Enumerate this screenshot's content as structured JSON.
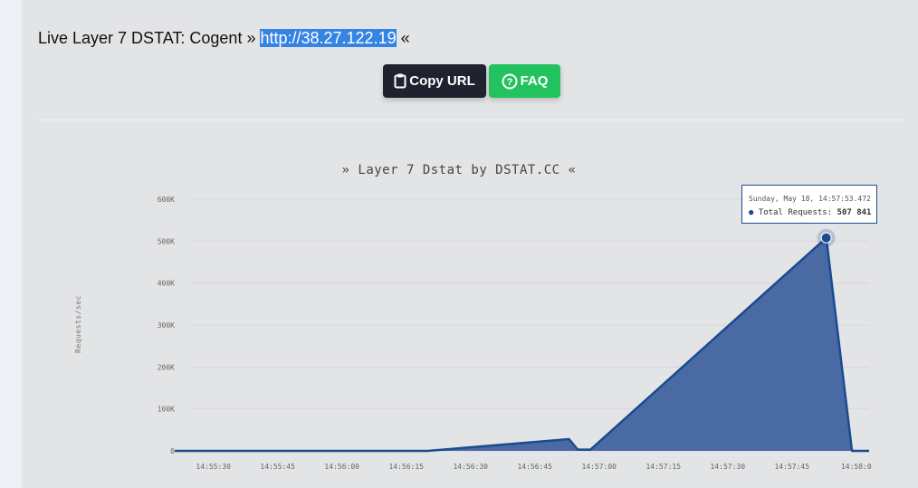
{
  "header": {
    "prefix": "Live Layer 7 DSTAT: Cogent »",
    "url": "http://38.27.122.19",
    "suffix": "«"
  },
  "buttons": {
    "copy_label": "Copy URL",
    "faq_label": "FAQ"
  },
  "colors": {
    "area_fill": "#4a6aa3",
    "line": "#1b4b8f",
    "copy_button": "#1f2330",
    "faq_button": "#22c35e"
  },
  "tooltip": {
    "date": "Sunday, May 18, 14:57:53.472",
    "label": "Total Requests:",
    "value": "507 841"
  },
  "chart_data": {
    "type": "area",
    "title": "» Layer 7 Dstat by DSTAT.CC «",
    "ylabel": "Requests/sec",
    "ylim": [
      0,
      600000
    ],
    "y_ticks": [
      0,
      100000,
      200000,
      300000,
      400000,
      500000,
      600000
    ],
    "y_tick_labels": [
      "0",
      "100K",
      "200K",
      "300K",
      "400K",
      "500K",
      "600K"
    ],
    "x_tick_labels": [
      "14:55:30",
      "14:55:45",
      "14:56:00",
      "14:56:15",
      "14:56:30",
      "14:56:45",
      "14:57:00",
      "14:57:15",
      "14:57:30",
      "14:57:45",
      "14:58:0"
    ],
    "x_tick_seconds": [
      930,
      945,
      960,
      975,
      990,
      1005,
      1020,
      1035,
      1050,
      1065,
      1080
    ],
    "x_start_label": "14:55:21",
    "series": [
      {
        "name": "Total Requests",
        "points": [
          {
            "t": "14:55:21",
            "y": 0
          },
          {
            "t": "14:55:45",
            "y": 0
          },
          {
            "t": "14:55:55",
            "y": 0
          },
          {
            "t": "14:56:20",
            "y": 0
          },
          {
            "t": "14:56:53",
            "y": 28000
          },
          {
            "t": "14:56:55",
            "y": 3000
          },
          {
            "t": "14:56:58",
            "y": 3000
          },
          {
            "t": "14:57:53",
            "y": 507841
          },
          {
            "t": "14:57:59",
            "y": 0
          },
          {
            "t": "14:58:03",
            "y": 0
          }
        ]
      }
    ],
    "highlight_point": {
      "t": "14:57:53",
      "y": 507841
    },
    "grid": true,
    "legend": "none"
  }
}
